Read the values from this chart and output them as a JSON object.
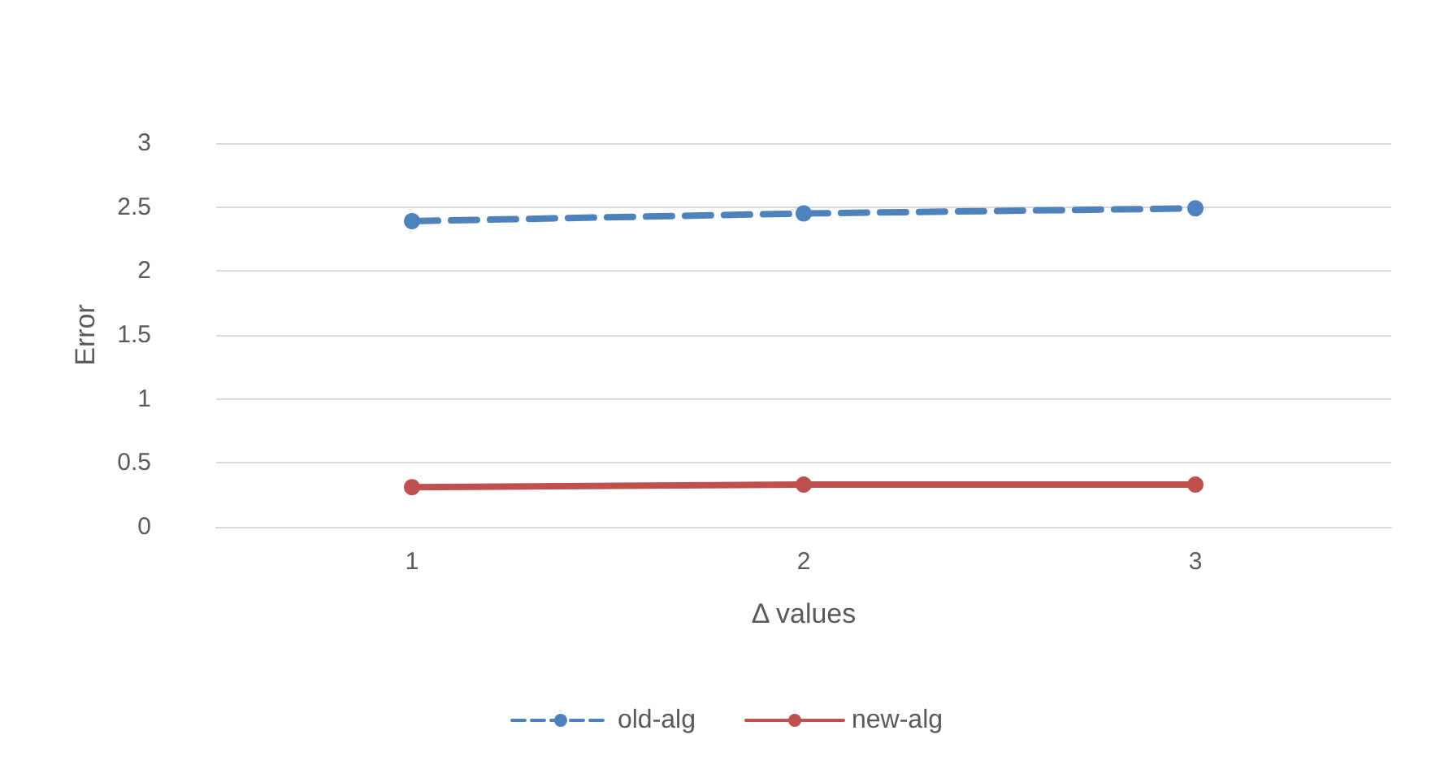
{
  "chart_data": {
    "type": "line",
    "xlabel": "Δ values",
    "ylabel": "Error",
    "categories": [
      "1",
      "2",
      "3"
    ],
    "series": [
      {
        "name": "old-alg",
        "color": "#4f81bd",
        "values": [
          2.39,
          2.45,
          2.49
        ],
        "line_style": "dashed"
      },
      {
        "name": "new-alg",
        "color": "#c0504d",
        "values": [
          0.31,
          0.33,
          0.33
        ],
        "line_style": "solid"
      }
    ],
    "ylim": [
      0,
      3
    ],
    "yticks": [
      0,
      0.5,
      1,
      1.5,
      2,
      2.5,
      3
    ],
    "grid": "y",
    "legend": "bottom",
    "marker": "circle"
  }
}
